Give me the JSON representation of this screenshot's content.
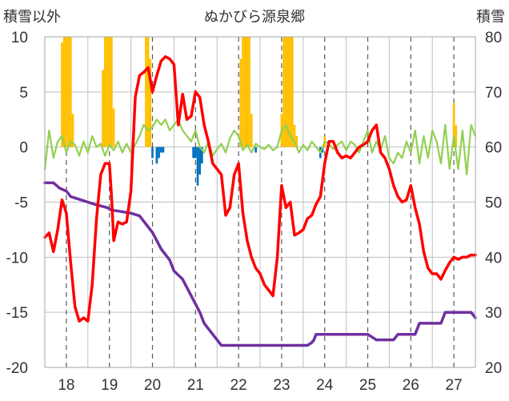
{
  "chart_data": {
    "type": "line",
    "title": "ぬかびら源泉郷",
    "left_axis_title": "積雪以外",
    "right_axis_title": "積雪",
    "ylim_left": [
      -20,
      10
    ],
    "ylim_right": [
      20,
      80
    ],
    "y_ticks_left": [
      "10",
      "5",
      "0",
      "-5",
      "-10",
      "-15",
      "-20"
    ],
    "y_ticks_right": [
      "80",
      "70",
      "60",
      "50",
      "40",
      "30",
      "20"
    ],
    "x_ticks": [
      "18",
      "19",
      "20",
      "21",
      "22",
      "23",
      "24",
      "25",
      "26",
      "27"
    ],
    "xlim": [
      17.5,
      27.5
    ],
    "grid": true,
    "colors": {
      "temperature": "#ff0000",
      "wind": "#92d050",
      "snow_depth": "#7030a0",
      "precip_positive": "#ffc000",
      "precip_negative": "#0070c0"
    },
    "series": [
      {
        "key": "temperature",
        "axis": "left",
        "x": [
          17.5,
          17.6,
          17.7,
          17.8,
          17.9,
          18.0,
          18.1,
          18.2,
          18.3,
          18.4,
          18.5,
          18.6,
          18.7,
          18.8,
          18.9,
          19.0,
          19.05,
          19.1,
          19.2,
          19.3,
          19.4,
          19.5,
          19.6,
          19.7,
          19.8,
          19.9,
          20.0,
          20.1,
          20.2,
          20.3,
          20.4,
          20.5,
          20.6,
          20.7,
          20.8,
          20.9,
          21.0,
          21.1,
          21.2,
          21.3,
          21.4,
          21.5,
          21.6,
          21.7,
          21.8,
          21.9,
          22.0,
          22.1,
          22.2,
          22.3,
          22.4,
          22.5,
          22.6,
          22.7,
          22.8,
          22.9,
          23.0,
          23.1,
          23.2,
          23.3,
          23.4,
          23.5,
          23.6,
          23.7,
          23.8,
          23.9,
          24.0,
          24.1,
          24.2,
          24.3,
          24.4,
          24.5,
          24.6,
          24.7,
          24.8,
          24.9,
          25.0,
          25.1,
          25.2,
          25.3,
          25.4,
          25.5,
          25.6,
          25.7,
          25.8,
          25.9,
          26.0,
          26.1,
          26.2,
          26.3,
          26.4,
          26.5,
          26.6,
          26.7,
          26.8,
          26.9,
          27.0,
          27.1,
          27.2,
          27.3,
          27.4,
          27.5
        ],
        "values": [
          -8.2,
          -7.8,
          -9.5,
          -7.5,
          -4.8,
          -6.0,
          -10.5,
          -14.5,
          -15.8,
          -15.5,
          -15.8,
          -12.5,
          -6.5,
          -2.5,
          -1.5,
          -1.5,
          -4.5,
          -8.5,
          -6.8,
          -7.0,
          -6.8,
          -4.0,
          4.5,
          6.5,
          6.8,
          7.2,
          5.0,
          6.5,
          7.8,
          8.2,
          8.0,
          7.5,
          2.0,
          4.8,
          2.5,
          2.8,
          5.0,
          4.5,
          2.0,
          0.5,
          -1.5,
          -2.0,
          -2.5,
          -6.2,
          -5.5,
          -2.5,
          -1.5,
          -6.0,
          -8.5,
          -10.0,
          -11.0,
          -11.5,
          -12.5,
          -13.0,
          -13.5,
          -10.0,
          -3.5,
          -5.5,
          -5.0,
          -8.0,
          -7.8,
          -7.5,
          -6.5,
          -6.2,
          -5.2,
          -4.5,
          -1.5,
          0.5,
          0.5,
          -0.5,
          -1.0,
          -0.8,
          -1.0,
          -0.5,
          0.0,
          0.2,
          0.5,
          1.5,
          2.0,
          -0.5,
          -1.0,
          -2.0,
          -3.5,
          -4.5,
          -5.0,
          -4.8,
          -3.5,
          -5.5,
          -7.0,
          -9.5,
          -11.0,
          -11.5,
          -11.5,
          -12.0,
          -11.2,
          -10.5,
          -10.0,
          -10.2,
          -10.0,
          -10.0,
          -9.8,
          -9.8
        ]
      },
      {
        "key": "wind",
        "axis": "left",
        "x": [
          17.5,
          17.6,
          17.7,
          17.8,
          17.9,
          18.0,
          18.1,
          18.2,
          18.3,
          18.4,
          18.5,
          18.6,
          18.7,
          18.8,
          18.9,
          19.0,
          19.1,
          19.2,
          19.3,
          19.4,
          19.5,
          19.6,
          19.7,
          19.8,
          19.9,
          20.0,
          20.1,
          20.2,
          20.3,
          20.4,
          20.5,
          20.6,
          20.7,
          20.8,
          20.9,
          21.0,
          21.1,
          21.2,
          21.3,
          21.4,
          21.5,
          21.6,
          21.7,
          21.8,
          21.9,
          22.0,
          22.1,
          22.2,
          22.3,
          22.4,
          22.5,
          22.6,
          22.7,
          22.8,
          22.9,
          23.0,
          23.1,
          23.2,
          23.3,
          23.4,
          23.5,
          23.6,
          23.7,
          23.8,
          23.9,
          24.0,
          24.1,
          24.2,
          24.3,
          24.4,
          24.5,
          24.6,
          24.7,
          24.8,
          24.9,
          25.0,
          25.1,
          25.2,
          25.3,
          25.4,
          25.5,
          25.6,
          25.7,
          25.8,
          25.9,
          26.0,
          26.1,
          26.2,
          26.3,
          26.4,
          26.5,
          26.6,
          26.7,
          26.8,
          26.9,
          27.0,
          27.1,
          27.2,
          27.3,
          27.4,
          27.5
        ],
        "values": [
          -2.0,
          1.5,
          -1.0,
          0.5,
          1.0,
          -0.5,
          0.5,
          0.2,
          -0.8,
          0.5,
          -0.5,
          1.0,
          0.0,
          0.3,
          -0.8,
          0.2,
          -0.3,
          0.5,
          -0.5,
          0.3,
          -0.5,
          0.2,
          1.0,
          2.0,
          1.5,
          1.8,
          2.5,
          2.0,
          2.5,
          1.5,
          2.0,
          2.5,
          1.5,
          1.0,
          0.5,
          1.5,
          0.0,
          -0.5,
          0.5,
          -0.8,
          -0.2,
          0.3,
          -0.5,
          0.8,
          1.5,
          1.0,
          -0.3,
          0.2,
          -0.5,
          0.3,
          0.0,
          -0.2,
          0.2,
          -0.3,
          0.0,
          1.5,
          2.0,
          1.0,
          0.5,
          -0.5,
          0.2,
          -0.3,
          0.5,
          0.0,
          -0.5,
          0.5,
          0.3,
          -0.2,
          0.2,
          0.5,
          -0.3,
          0.5,
          0.2,
          -0.5,
          0.5,
          1.5,
          -0.5,
          0.5,
          -0.3,
          1.0,
          -1.0,
          -1.5,
          -0.5,
          -1.0,
          0.5,
          -0.5,
          1.5,
          -1.5,
          1.0,
          -1.0,
          1.5,
          0.5,
          -1.5,
          2.0,
          -2.0,
          1.0,
          -2.0,
          1.5,
          -2.5,
          2.0,
          1.0
        ]
      },
      {
        "key": "snow_depth",
        "axis": "right",
        "x": [
          17.5,
          17.7,
          17.85,
          18.0,
          18.1,
          18.3,
          18.5,
          18.7,
          18.95,
          19.05,
          19.1,
          19.5,
          19.7,
          19.8,
          19.9,
          20.0,
          20.1,
          20.2,
          20.4,
          20.5,
          20.7,
          20.8,
          20.9,
          21.0,
          21.1,
          21.2,
          21.4,
          21.5,
          21.6,
          22.0,
          22.5,
          23.0,
          23.5,
          23.6,
          23.7,
          23.75,
          23.8,
          24.0,
          24.5,
          24.9,
          25.0,
          25.2,
          25.3,
          25.5,
          25.6,
          25.7,
          25.9,
          26.1,
          26.15,
          26.2,
          26.5,
          26.7,
          26.8,
          27.0,
          27.4,
          27.5
        ],
        "values": [
          53.5,
          53.5,
          52.5,
          52.0,
          51.0,
          50.5,
          50.0,
          49.5,
          49.0,
          48.5,
          48.5,
          48.0,
          47.5,
          46.5,
          45.5,
          44.5,
          43.0,
          41.5,
          39.5,
          37.5,
          36.0,
          34.5,
          33.0,
          31.5,
          30.0,
          28.0,
          26.0,
          25.0,
          24.0,
          24.0,
          24.0,
          24.0,
          24.0,
          24.0,
          24.5,
          25.0,
          26.0,
          26.0,
          26.0,
          26.0,
          26.0,
          25.0,
          25.0,
          25.0,
          25.0,
          26.0,
          26.0,
          26.0,
          27.0,
          28.0,
          28.0,
          28.0,
          30.0,
          30.0,
          30.0,
          29.0
        ]
      },
      {
        "key": "precipitation",
        "axis": "left",
        "type": "bar",
        "x": [
          17.9,
          17.95,
          18.0,
          18.05,
          18.1,
          18.15,
          18.85,
          18.9,
          18.95,
          19.0,
          19.05,
          19.1,
          19.85,
          19.9,
          19.95,
          20.0,
          20.1,
          20.15,
          20.2,
          20.25,
          20.95,
          21.0,
          21.05,
          21.1,
          21.15,
          22.05,
          22.1,
          22.15,
          22.2,
          22.25,
          22.3,
          22.4,
          23.0,
          23.05,
          23.1,
          23.15,
          23.2,
          23.25,
          23.3,
          23.35,
          23.9,
          23.95,
          24.0,
          27.0,
          27.05
        ],
        "values": [
          9.5,
          10.0,
          10.0,
          10.0,
          10.0,
          3.0,
          7.0,
          10.0,
          10.0,
          10.0,
          10.0,
          3.5,
          10.0,
          10.0,
          8.0,
          -1.0,
          -1.5,
          -1.0,
          -0.5,
          -0.5,
          -1.0,
          -1.0,
          -3.5,
          -2.5,
          -1.5,
          8.0,
          10.0,
          10.0,
          10.0,
          10.0,
          3.0,
          -0.5,
          3.0,
          10.0,
          10.0,
          10.0,
          10.0,
          10.0,
          2.0,
          1.0,
          -1.0,
          -0.5,
          1.0,
          4.0,
          2.0
        ]
      }
    ]
  }
}
